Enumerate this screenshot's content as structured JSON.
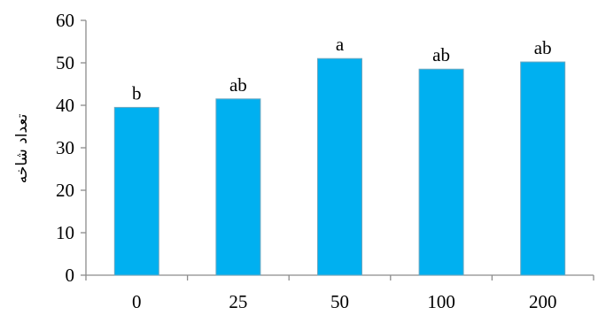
{
  "chart_data": {
    "type": "bar",
    "categories": [
      "0",
      "25",
      "50",
      "100",
      "200"
    ],
    "values": [
      39.5,
      41.5,
      51.0,
      48.5,
      50.2
    ],
    "data_labels": [
      "b",
      "ab",
      "a",
      "ab",
      "ab"
    ],
    "ylabel": "تعداد شاخه",
    "xlabel": "",
    "ylim": [
      0,
      60
    ],
    "yticks": [
      "0",
      "10",
      "20",
      "30",
      "40",
      "50",
      "60"
    ],
    "grid": false,
    "legend": "none",
    "colors": {
      "bar_fill": "#00B0F0",
      "bar_stroke": "#6BA7C0",
      "axis": "#8C8C8C"
    }
  }
}
